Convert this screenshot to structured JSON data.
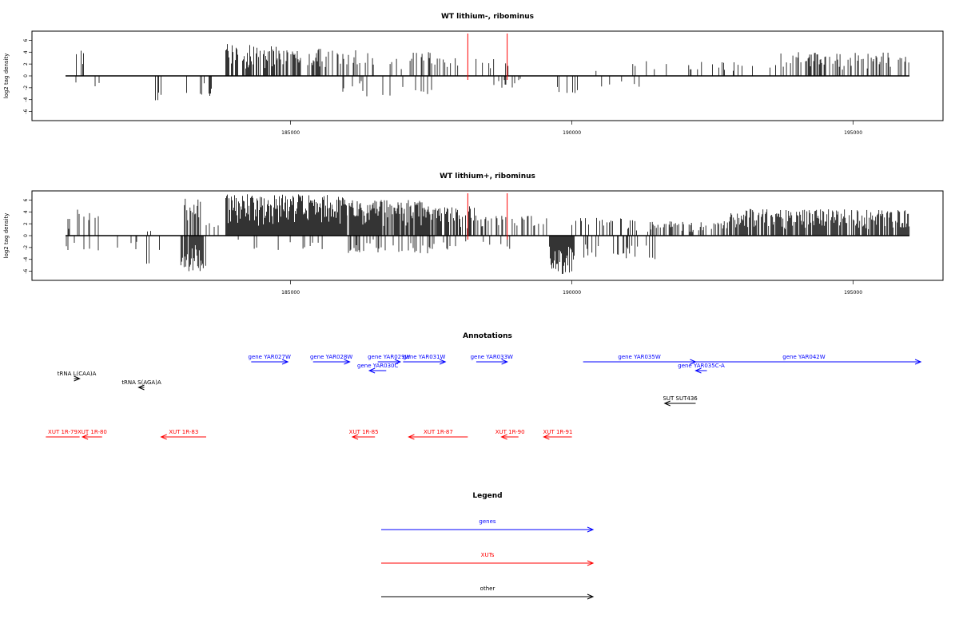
{
  "colors": {
    "gene": "#0000ff",
    "xut": "#ff0000",
    "other": "#000000",
    "marker": "#ff0000",
    "bars": "#000000"
  },
  "x_range": [
    181000,
    196000
  ],
  "x_ticks": [
    "185000",
    "190000",
    "195000"
  ],
  "y_ticks": [
    "6",
    "4",
    "2",
    "0",
    "-2",
    "-4",
    "-6"
  ],
  "ylabel": "log2 tag density",
  "markers": [
    188150,
    188850
  ],
  "chart_data": [
    {
      "type": "bar",
      "title": "WT lithium-, ribominus",
      "ylabel": "log2 tag density",
      "ylim": [
        -7,
        7
      ],
      "xlim": [
        181000,
        196000
      ],
      "plus_regions": [
        {
          "from": 181150,
          "to": 181500,
          "max": 5,
          "density": 0.15
        },
        {
          "from": 183850,
          "to": 184750,
          "max": 5.5,
          "density": 0.65
        },
        {
          "from": 184750,
          "to": 186200,
          "max": 4.7,
          "density": 0.45
        },
        {
          "from": 186200,
          "to": 187700,
          "max": 4,
          "density": 0.25
        },
        {
          "from": 187700,
          "to": 189000,
          "max": 3,
          "density": 0.15
        },
        {
          "from": 190400,
          "to": 192500,
          "max": 2.6,
          "density": 0.05
        },
        {
          "from": 192500,
          "to": 193700,
          "max": 2.5,
          "density": 0.12
        },
        {
          "from": 193700,
          "to": 196000,
          "max": 4,
          "density": 0.4
        }
      ],
      "minus_regions": [
        {
          "from": 181100,
          "to": 181700,
          "max": 2,
          "density": 0.06
        },
        {
          "from": 182600,
          "to": 182700,
          "max": 5,
          "density": 0.3
        },
        {
          "from": 183150,
          "to": 183600,
          "max": 3.5,
          "density": 0.4
        },
        {
          "from": 185900,
          "to": 187700,
          "max": 3.5,
          "density": 0.12
        },
        {
          "from": 188600,
          "to": 189200,
          "max": 2,
          "density": 0.2
        },
        {
          "from": 189600,
          "to": 190100,
          "max": 3,
          "density": 0.2
        },
        {
          "from": 190500,
          "to": 191200,
          "max": 2,
          "density": 0.08
        }
      ]
    },
    {
      "type": "bar",
      "title": "WT lithium+, ribominus",
      "ylabel": "log2 tag density",
      "ylim": [
        -7,
        7
      ],
      "xlim": [
        181000,
        196000
      ],
      "plus_regions": [
        {
          "from": 181000,
          "to": 181600,
          "max": 4.5,
          "density": 0.25
        },
        {
          "from": 182400,
          "to": 182700,
          "max": 2,
          "density": 0.1
        },
        {
          "from": 183100,
          "to": 183400,
          "max": 6.5,
          "density": 0.8
        },
        {
          "from": 183500,
          "to": 183800,
          "max": 2.5,
          "density": 0.25
        },
        {
          "from": 183850,
          "to": 186000,
          "max": 7,
          "density": 1
        },
        {
          "from": 186000,
          "to": 187600,
          "max": 6,
          "density": 0.85
        },
        {
          "from": 187600,
          "to": 188300,
          "max": 5,
          "density": 0.6
        },
        {
          "from": 188300,
          "to": 189600,
          "max": 3.5,
          "density": 0.3
        },
        {
          "from": 190000,
          "to": 191400,
          "max": 3,
          "density": 0.3
        },
        {
          "from": 191400,
          "to": 192800,
          "max": 2.5,
          "density": 0.35
        },
        {
          "from": 192800,
          "to": 196000,
          "max": 4.5,
          "density": 0.8
        }
      ],
      "minus_regions": [
        {
          "from": 181000,
          "to": 182300,
          "max": 2.5,
          "density": 0.1
        },
        {
          "from": 182300,
          "to": 182700,
          "max": 5.5,
          "density": 0.15
        },
        {
          "from": 183050,
          "to": 183500,
          "max": 6,
          "density": 0.9
        },
        {
          "from": 183800,
          "to": 186000,
          "max": 2.5,
          "density": 0.08
        },
        {
          "from": 186000,
          "to": 188000,
          "max": 3,
          "density": 0.2
        },
        {
          "from": 188000,
          "to": 189000,
          "max": 2.5,
          "density": 0.15
        },
        {
          "from": 189600,
          "to": 190050,
          "max": 6.5,
          "density": 1
        },
        {
          "from": 190200,
          "to": 191500,
          "max": 4,
          "density": 0.2
        }
      ]
    }
  ],
  "annotations": {
    "title": "Annotations",
    "features": [
      {
        "label": "gene YAR027W",
        "start": 184300,
        "end": 184950,
        "dir": "right",
        "cls": "gene",
        "row": 0
      },
      {
        "label": "gene YAR028W",
        "start": 185400,
        "end": 186050,
        "dir": "right",
        "cls": "gene",
        "row": 0
      },
      {
        "label": "gene YAR029W",
        "start": 186550,
        "end": 186950,
        "dir": "right",
        "cls": "gene",
        "row": 0
      },
      {
        "label": "gene YAR031W",
        "start": 187000,
        "end": 187750,
        "dir": "right",
        "cls": "gene",
        "row": 0
      },
      {
        "label": "gene YAR033W",
        "start": 188300,
        "end": 188850,
        "dir": "right",
        "cls": "gene",
        "row": 0
      },
      {
        "label": "gene YAR035W",
        "start": 190200,
        "end": 192200,
        "dir": "right",
        "cls": "gene",
        "row": 0
      },
      {
        "label": "gene YAR042W",
        "start": 192050,
        "end": 196200,
        "dir": "right",
        "cls": "gene",
        "row": 0
      },
      {
        "label": "gene YAR030C",
        "start": 186400,
        "end": 186700,
        "dir": "left",
        "cls": "gene",
        "row": 1
      },
      {
        "label": "gene YAR035C-A",
        "start": 192200,
        "end": 192400,
        "dir": "left",
        "cls": "gene",
        "row": 1
      },
      {
        "label": "tRNA L(CAA)A",
        "start": 181150,
        "end": 181250,
        "dir": "right",
        "cls": "other",
        "row": 2
      },
      {
        "label": "tRNA S(AGA)A",
        "start": 182300,
        "end": 182400,
        "dir": "left",
        "cls": "other",
        "row": 3
      },
      {
        "label": "SUT SUT436",
        "start": 191650,
        "end": 192200,
        "dir": "left",
        "cls": "other",
        "row": 4
      },
      {
        "label": "XUT 1R-79",
        "start": 180650,
        "end": 181250,
        "dir": "none",
        "cls": "xut",
        "row": 5
      },
      {
        "label": "XUT 1R-80",
        "start": 181300,
        "end": 181650,
        "dir": "left",
        "cls": "xut",
        "row": 5
      },
      {
        "label": "XUT 1R-83",
        "start": 182700,
        "end": 183500,
        "dir": "left",
        "cls": "xut",
        "row": 5
      },
      {
        "label": "XUT 1R-85",
        "start": 186100,
        "end": 186500,
        "dir": "left",
        "cls": "xut",
        "row": 5
      },
      {
        "label": "XUT 1R-87",
        "start": 187100,
        "end": 188150,
        "dir": "left",
        "cls": "xut",
        "row": 5
      },
      {
        "label": "XUT 1R-90",
        "start": 188750,
        "end": 189050,
        "dir": "left",
        "cls": "xut",
        "row": 5
      },
      {
        "label": "XUT 1R-91",
        "start": 189500,
        "end": 190000,
        "dir": "left",
        "cls": "xut",
        "row": 5
      }
    ]
  },
  "legend": {
    "title": "Legend",
    "items": [
      {
        "label": "genes",
        "cls": "gene"
      },
      {
        "label": "XUTs",
        "cls": "xut"
      },
      {
        "label": "other",
        "cls": "other"
      }
    ]
  }
}
